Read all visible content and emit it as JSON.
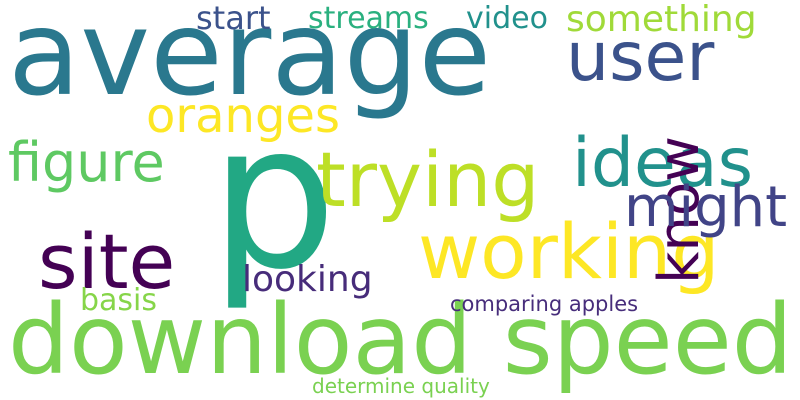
{
  "cloud": {
    "background": "#ffffff",
    "words": [
      {
        "text": "average",
        "color": "#2a788e"
      },
      {
        "text": "p",
        "color": "#22a884"
      },
      {
        "text": "download speed",
        "color": "#7ad151"
      },
      {
        "text": "working",
        "color": "#fde725"
      },
      {
        "text": "trying",
        "color": "#bddf26"
      },
      {
        "text": "site",
        "color": "#440154"
      },
      {
        "text": "user",
        "color": "#3b528b"
      },
      {
        "text": "ideas",
        "color": "#21918c"
      },
      {
        "text": "know",
        "color": "#440154"
      },
      {
        "text": "might",
        "color": "#414487"
      },
      {
        "text": "figure",
        "color": "#5ec962"
      },
      {
        "text": "oranges",
        "color": "#fde725"
      },
      {
        "text": "something",
        "color": "#a0da39"
      },
      {
        "text": "streams",
        "color": "#2ab07f"
      },
      {
        "text": "video",
        "color": "#21918c"
      },
      {
        "text": "start",
        "color": "#3b528b"
      },
      {
        "text": "looking",
        "color": "#472c7a"
      },
      {
        "text": "basis",
        "color": "#86d549"
      },
      {
        "text": "comparing apples",
        "color": "#472d7b"
      },
      {
        "text": "determine quality",
        "color": "#7ad151"
      }
    ]
  }
}
